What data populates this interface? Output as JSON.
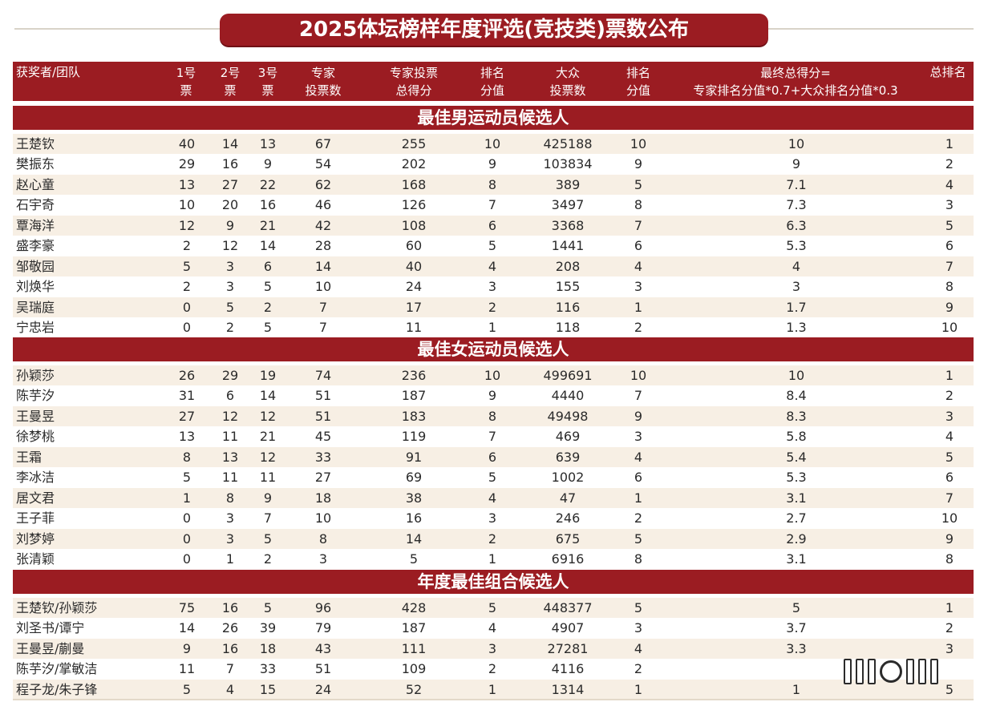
{
  "title": "2025体坛榜样年度评选(竞技类)票数公布",
  "headers": {
    "name": "获奖者/团队",
    "vote1": [
      "1号",
      "票"
    ],
    "vote2": [
      "2号",
      "票"
    ],
    "vote3": [
      "3号",
      "票"
    ],
    "expert_votes": [
      "专家",
      "投票数"
    ],
    "expert_score": [
      "专家投票",
      "总得分"
    ],
    "expert_rank": [
      "排名",
      "分值"
    ],
    "public_votes": [
      "大众",
      "投票数"
    ],
    "public_rank": [
      "排名",
      "分值"
    ],
    "final_score": [
      "最终总得分=",
      "专家排名分值*0.7+大众排名分值*0.3"
    ],
    "overall_rank": "总排名"
  },
  "sections": [
    {
      "title": "最佳男运动员候选人",
      "rows": [
        [
          "王楚钦",
          "40",
          "14",
          "13",
          "67",
          "255",
          "10",
          "425188",
          "10",
          "10",
          "1"
        ],
        [
          "樊振东",
          "29",
          "16",
          "9",
          "54",
          "202",
          "9",
          "103834",
          "9",
          "9",
          "2"
        ],
        [
          "赵心童",
          "13",
          "27",
          "22",
          "62",
          "168",
          "8",
          "389",
          "5",
          "7.1",
          "4"
        ],
        [
          "石宇奇",
          "10",
          "20",
          "16",
          "46",
          "126",
          "7",
          "3497",
          "8",
          "7.3",
          "3"
        ],
        [
          "覃海洋",
          "12",
          "9",
          "21",
          "42",
          "108",
          "6",
          "3368",
          "7",
          "6.3",
          "5"
        ],
        [
          "盛李豪",
          "2",
          "12",
          "14",
          "28",
          "60",
          "5",
          "1441",
          "6",
          "5.3",
          "6"
        ],
        [
          "邹敬园",
          "5",
          "3",
          "6",
          "14",
          "40",
          "4",
          "208",
          "4",
          "4",
          "7"
        ],
        [
          "刘焕华",
          "2",
          "3",
          "5",
          "10",
          "24",
          "3",
          "155",
          "3",
          "3",
          "8"
        ],
        [
          "吴瑞庭",
          "0",
          "5",
          "2",
          "7",
          "17",
          "2",
          "116",
          "1",
          "1.7",
          "9"
        ],
        [
          "宁忠岩",
          "0",
          "2",
          "5",
          "7",
          "11",
          "1",
          "118",
          "2",
          "1.3",
          "10"
        ]
      ]
    },
    {
      "title": "最佳女运动员候选人",
      "rows": [
        [
          "孙颖莎",
          "26",
          "29",
          "19",
          "74",
          "236",
          "10",
          "499691",
          "10",
          "10",
          "1"
        ],
        [
          "陈芋汐",
          "31",
          "6",
          "14",
          "51",
          "187",
          "9",
          "4440",
          "7",
          "8.4",
          "2"
        ],
        [
          "王曼昱",
          "27",
          "12",
          "12",
          "51",
          "183",
          "8",
          "49498",
          "9",
          "8.3",
          "3"
        ],
        [
          "徐梦桃",
          "13",
          "11",
          "21",
          "45",
          "119",
          "7",
          "469",
          "3",
          "5.8",
          "4"
        ],
        [
          "王霜",
          "8",
          "13",
          "12",
          "33",
          "91",
          "6",
          "639",
          "4",
          "5.4",
          "5"
        ],
        [
          "李冰洁",
          "5",
          "11",
          "11",
          "27",
          "69",
          "5",
          "1002",
          "6",
          "5.3",
          "6"
        ],
        [
          "居文君",
          "1",
          "8",
          "9",
          "18",
          "38",
          "4",
          "47",
          "1",
          "3.1",
          "7"
        ],
        [
          "王子菲",
          "0",
          "3",
          "7",
          "10",
          "16",
          "3",
          "246",
          "2",
          "2.7",
          "10"
        ],
        [
          "刘梦婷",
          "0",
          "3",
          "5",
          "8",
          "14",
          "2",
          "675",
          "5",
          "2.9",
          "9"
        ],
        [
          "张清颖",
          "0",
          "1",
          "2",
          "3",
          "5",
          "1",
          "6916",
          "8",
          "3.1",
          "8"
        ]
      ]
    },
    {
      "title": "年度最佳组合候选人",
      "rows": [
        [
          "王楚钦/孙颖莎",
          "75",
          "16",
          "5",
          "96",
          "428",
          "5",
          "448377",
          "5",
          "5",
          "1"
        ],
        [
          "刘圣书/谭宁",
          "14",
          "26",
          "39",
          "79",
          "187",
          "4",
          "4907",
          "3",
          "3.7",
          "2"
        ],
        [
          "王曼昱/蒯曼",
          "9",
          "16",
          "18",
          "43",
          "111",
          "3",
          "27281",
          "4",
          "3.3",
          "3"
        ],
        [
          "陈芋汐/掌敏洁",
          "11",
          "7",
          "33",
          "51",
          "109",
          "2",
          "4116",
          "2",
          "",
          ""
        ],
        [
          "程子龙/朱子锋",
          "5",
          "4",
          "15",
          "24",
          "52",
          "1",
          "1314",
          "1",
          "1",
          "5"
        ]
      ]
    }
  ]
}
